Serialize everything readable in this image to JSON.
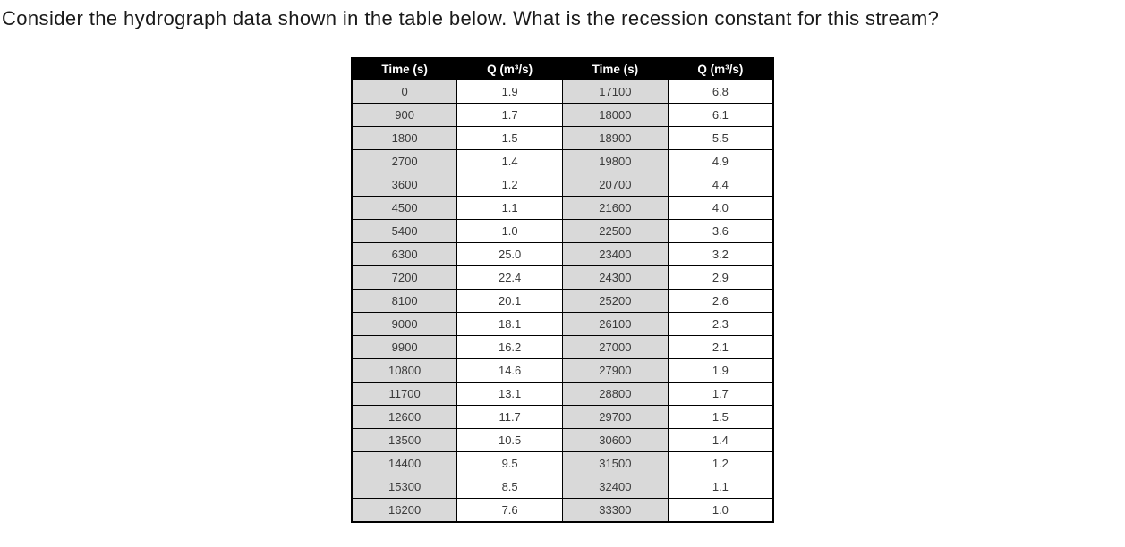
{
  "question": {
    "text": "Consider the hydrograph data shown in the table below. What is the recession constant for this stream?"
  },
  "table": {
    "headers": [
      "Time (s)",
      "Q (m³/s)",
      "Time (s)",
      "Q (m³/s)"
    ],
    "rows": [
      [
        "0",
        "1.9",
        "17100",
        "6.8"
      ],
      [
        "900",
        "1.7",
        "18000",
        "6.1"
      ],
      [
        "1800",
        "1.5",
        "18900",
        "5.5"
      ],
      [
        "2700",
        "1.4",
        "19800",
        "4.9"
      ],
      [
        "3600",
        "1.2",
        "20700",
        "4.4"
      ],
      [
        "4500",
        "1.1",
        "21600",
        "4.0"
      ],
      [
        "5400",
        "1.0",
        "22500",
        "3.6"
      ],
      [
        "6300",
        "25.0",
        "23400",
        "3.2"
      ],
      [
        "7200",
        "22.4",
        "24300",
        "2.9"
      ],
      [
        "8100",
        "20.1",
        "25200",
        "2.6"
      ],
      [
        "9000",
        "18.1",
        "26100",
        "2.3"
      ],
      [
        "9900",
        "16.2",
        "27000",
        "2.1"
      ],
      [
        "10800",
        "14.6",
        "27900",
        "1.9"
      ],
      [
        "11700",
        "13.1",
        "28800",
        "1.7"
      ],
      [
        "12600",
        "11.7",
        "29700",
        "1.5"
      ],
      [
        "13500",
        "10.5",
        "30600",
        "1.4"
      ],
      [
        "14400",
        "9.5",
        "31500",
        "1.2"
      ],
      [
        "15300",
        "8.5",
        "32400",
        "1.1"
      ],
      [
        "16200",
        "7.6",
        "33300",
        "1.0"
      ]
    ]
  },
  "colors": {
    "header_bg": "#000000",
    "header_text": "#ffffff",
    "time_cell_bg": "#d9d9d9",
    "q_cell_bg": "#ffffff",
    "border": "#000000",
    "question_text": "#1a1a1a"
  }
}
